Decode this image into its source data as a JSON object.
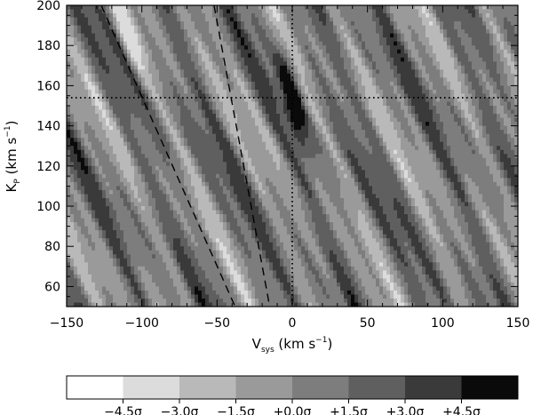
{
  "chart_data": {
    "type": "heatmap",
    "title": "",
    "xlabel": {
      "main": "V",
      "sub": "sys",
      "unit_pre": " (km s",
      "sup": "−1",
      "unit_post": ")"
    },
    "ylabel": {
      "main": "K",
      "sub": "P",
      "unit_pre": " (km s",
      "sup": "−1",
      "unit_post": ")"
    },
    "xlim": [
      -150,
      150
    ],
    "ylim": [
      50,
      200
    ],
    "xticks": [
      -150,
      -100,
      -50,
      0,
      50,
      100,
      150
    ],
    "yticks": [
      60,
      80,
      100,
      120,
      140,
      160,
      180,
      200
    ],
    "xtick_labels": [
      "−150",
      "−100",
      "−50",
      "0",
      "50",
      "100",
      "150"
    ],
    "ytick_labels": [
      "60",
      "80",
      "100",
      "120",
      "140",
      "160",
      "180",
      "200"
    ],
    "reference_lines": {
      "dotted_vertical_x": 0,
      "dotted_horizontal_y": 154,
      "dashed_lines": [
        {
          "points": [
            [
              -127,
              200
            ],
            [
              -38,
              50
            ]
          ]
        },
        {
          "points": [
            [
              -52,
              200
            ],
            [
              -15,
              50
            ]
          ]
        }
      ]
    },
    "features": {
      "dark_peak": {
        "x": 0,
        "y": 154
      },
      "bright_streak": {
        "x": -110,
        "y": 185
      }
    },
    "colorbar": {
      "colors": [
        "#ffffff",
        "#dcdcdc",
        "#b9b9b9",
        "#9a9a9a",
        "#7d7d7d",
        "#5f5f5f",
        "#3a3a3a",
        "#0a0a0a"
      ],
      "tick_labels": [
        "−4.5σ",
        "−3.0σ",
        "−1.5σ",
        "+0.0σ",
        "+1.5σ",
        "+3.0σ",
        "+4.5σ"
      ]
    }
  }
}
